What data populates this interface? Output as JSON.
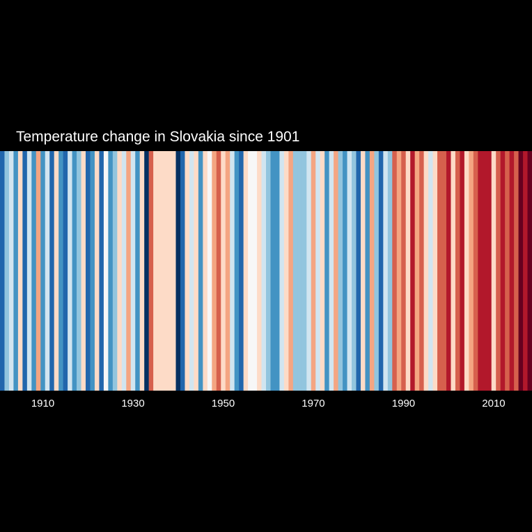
{
  "chart_data": {
    "type": "heatmap",
    "title": "Temperature change in Slovakia since 1901",
    "x_start_year": 1901,
    "x_end_year": 2018,
    "years": [
      1901,
      1902,
      1903,
      1904,
      1905,
      1906,
      1907,
      1908,
      1909,
      1910,
      1911,
      1912,
      1913,
      1914,
      1915,
      1916,
      1917,
      1918,
      1919,
      1920,
      1921,
      1922,
      1923,
      1924,
      1925,
      1926,
      1927,
      1928,
      1929,
      1930,
      1931,
      1932,
      1933,
      1934,
      1935,
      1936,
      1937,
      1938,
      1939,
      1940,
      1941,
      1942,
      1943,
      1944,
      1945,
      1946,
      1947,
      1948,
      1949,
      1950,
      1951,
      1952,
      1953,
      1954,
      1955,
      1956,
      1957,
      1958,
      1959,
      1960,
      1961,
      1962,
      1963,
      1964,
      1965,
      1966,
      1967,
      1968,
      1969,
      1970,
      1971,
      1972,
      1973,
      1974,
      1975,
      1976,
      1977,
      1978,
      1979,
      1980,
      1981,
      1982,
      1983,
      1984,
      1985,
      1986,
      1987,
      1988,
      1989,
      1990,
      1991,
      1992,
      1993,
      1994,
      1995,
      1996,
      1997,
      1998,
      1999,
      2000,
      2001,
      2002,
      2003,
      2004,
      2005,
      2006,
      2007,
      2008,
      2009,
      2010,
      2011,
      2012,
      2013,
      2014,
      2015,
      2016,
      2017,
      2018
    ],
    "colors": [
      "#2166ac",
      "#92c5de",
      "#d1e5f0",
      "#4393c3",
      "#fddbc7",
      "#2166ac",
      "#d1e5f0",
      "#4393c3",
      "#f4a582",
      "#4393c3",
      "#d1e5f0",
      "#2166ac",
      "#fddbc7",
      "#4393c3",
      "#2166ac",
      "#d1e5f0",
      "#4393c3",
      "#92c5de",
      "#fddbc7",
      "#2166ac",
      "#4393c3",
      "#fddbc7",
      "#2166ac",
      "#f7f7f7",
      "#4393c3",
      "#92c5de",
      "#fddbc7",
      "#d1e5f0",
      "#f4a582",
      "#d1e5f0",
      "#4393c3",
      "#fddbc7",
      "#053061",
      "#d6604d",
      "#fddbc7",
      "#fddbc7",
      "#fddbc7",
      "#fddbc7",
      "#fddbc7",
      "#053061",
      "#2166ac",
      "#fddbc7",
      "#d1e5f0",
      "#fddbc7",
      "#4393c3",
      "#fddbc7",
      "#f7f7f7",
      "#f4a582",
      "#d6604d",
      "#fddbc7",
      "#f4a582",
      "#d1e5f0",
      "#4393c3",
      "#2166ac",
      "#fddbc7",
      "#f7f7f7",
      "#f7f7f7",
      "#fddbc7",
      "#d1e5f0",
      "#92c5de",
      "#4393c3",
      "#4393c3",
      "#d1e5f0",
      "#fddbc7",
      "#f4a582",
      "#92c5de",
      "#92c5de",
      "#92c5de",
      "#d1e5f0",
      "#f4a582",
      "#d1e5f0",
      "#fddbc7",
      "#4393c3",
      "#d1e5f0",
      "#f4a582",
      "#92c5de",
      "#4393c3",
      "#d1e5f0",
      "#92c5de",
      "#2166ac",
      "#fddbc7",
      "#4393c3",
      "#f4a582",
      "#92c5de",
      "#2166ac",
      "#d1e5f0",
      "#92c5de",
      "#d6604d",
      "#f4a582",
      "#d6604d",
      "#fddbc7",
      "#b2182b",
      "#f4a582",
      "#d6604d",
      "#fddbc7",
      "#d1e5f0",
      "#fddbc7",
      "#d6604d",
      "#d6604d",
      "#b2182b",
      "#fddbc7",
      "#d6604d",
      "#b2182b",
      "#fddbc7",
      "#f4a582",
      "#d6604d",
      "#b2182b",
      "#b2182b",
      "#b2182b",
      "#fddbc7",
      "#d6604d",
      "#b2182b",
      "#d6604d",
      "#b2182b",
      "#d6604d",
      "#67001f",
      "#b2182b",
      "#67001f"
    ],
    "x_ticks": [
      "1910",
      "1930",
      "1950",
      "1970",
      "1990",
      "2010"
    ],
    "x_tick_years": [
      1910,
      1930,
      1950,
      1970,
      1990,
      2010
    ],
    "background": "#000000",
    "grid": false,
    "legend": "none"
  }
}
